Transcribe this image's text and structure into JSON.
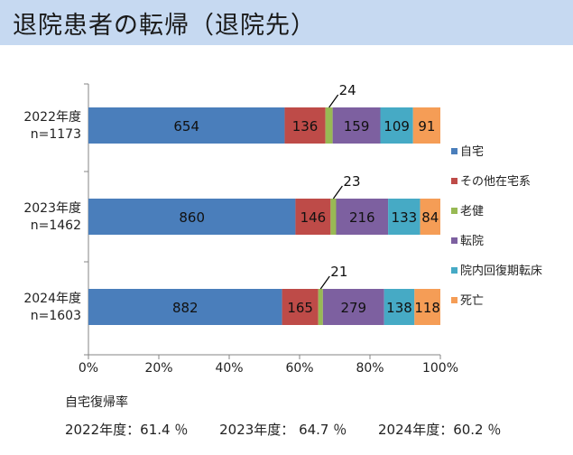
{
  "header": {
    "title": "退院患者の転帰（退院先）"
  },
  "chart_data": {
    "type": "bar",
    "orientation": "horizontal",
    "stacked": "percent",
    "categories": [
      "2022年度\nn=1173",
      "2023年度\nn=1462",
      "2024年度\nn=1603"
    ],
    "series": [
      {
        "name": "自宅",
        "color": "#4a7ebb",
        "values": [
          654,
          860,
          882
        ]
      },
      {
        "name": "その他在宅系",
        "color": "#be4b48",
        "values": [
          136,
          146,
          165
        ]
      },
      {
        "name": "老健",
        "color": "#98b954",
        "values": [
          24,
          23,
          21
        ]
      },
      {
        "name": "転院",
        "color": "#7d60a0",
        "values": [
          159,
          216,
          279
        ]
      },
      {
        "name": "院内回復期転床",
        "color": "#46aac5",
        "values": [
          109,
          133,
          138
        ]
      },
      {
        "name": "死亡",
        "color": "#f59d56",
        "values": [
          91,
          84,
          118
        ]
      }
    ],
    "xticks": [
      "0%",
      "20%",
      "40%",
      "60%",
      "80%",
      "100%"
    ],
    "xlim": [
      0,
      100
    ],
    "grid": false,
    "legend": "right",
    "data_labels": [
      [
        "654",
        "136",
        "24",
        "159",
        "109",
        "91"
      ],
      [
        "860",
        "146",
        "23",
        "216",
        "133",
        "84"
      ],
      [
        "882",
        "165",
        "21",
        "279",
        "138",
        "118"
      ]
    ],
    "callout_series": "老健"
  },
  "footer": {
    "label": "自宅復帰率",
    "rates": [
      "2022年度：61.4 ％",
      "2023年度： 64.7 ％",
      "2024年度：60.2 ％"
    ]
  }
}
